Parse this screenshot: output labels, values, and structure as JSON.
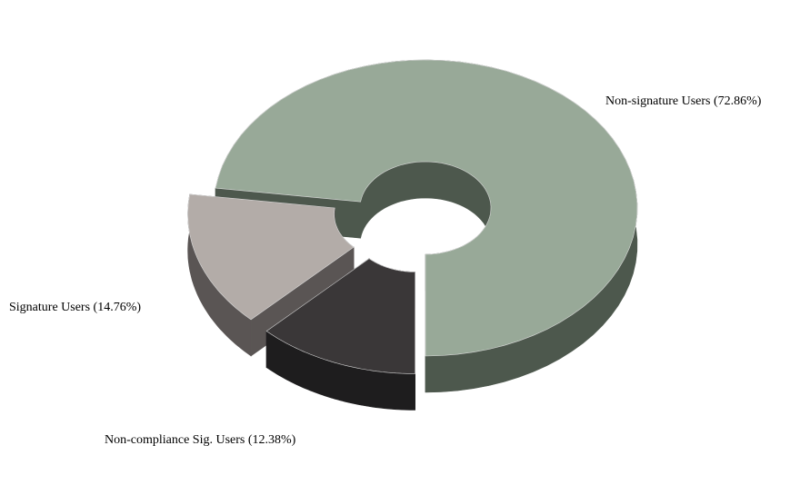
{
  "chart_data": {
    "type": "pie",
    "variant": "3d-donut-exploded",
    "categories": [
      "Non-signature Users",
      "Signature Users",
      "Non-compliance Sig. Users"
    ],
    "values": [
      72.86,
      14.76,
      12.38
    ],
    "labels": [
      "Non-signature Users (72.86%)",
      "Signature Users (14.76%)",
      "Non-compliance Sig. Users (12.38%)"
    ],
    "colors": [
      "#98a998",
      "#b3aca8",
      "#3a3738"
    ],
    "side_colors": [
      "#4d584d",
      "#5a5554",
      "#1e1d1e"
    ],
    "exploded": [
      false,
      true,
      true
    ],
    "legend": "none"
  }
}
